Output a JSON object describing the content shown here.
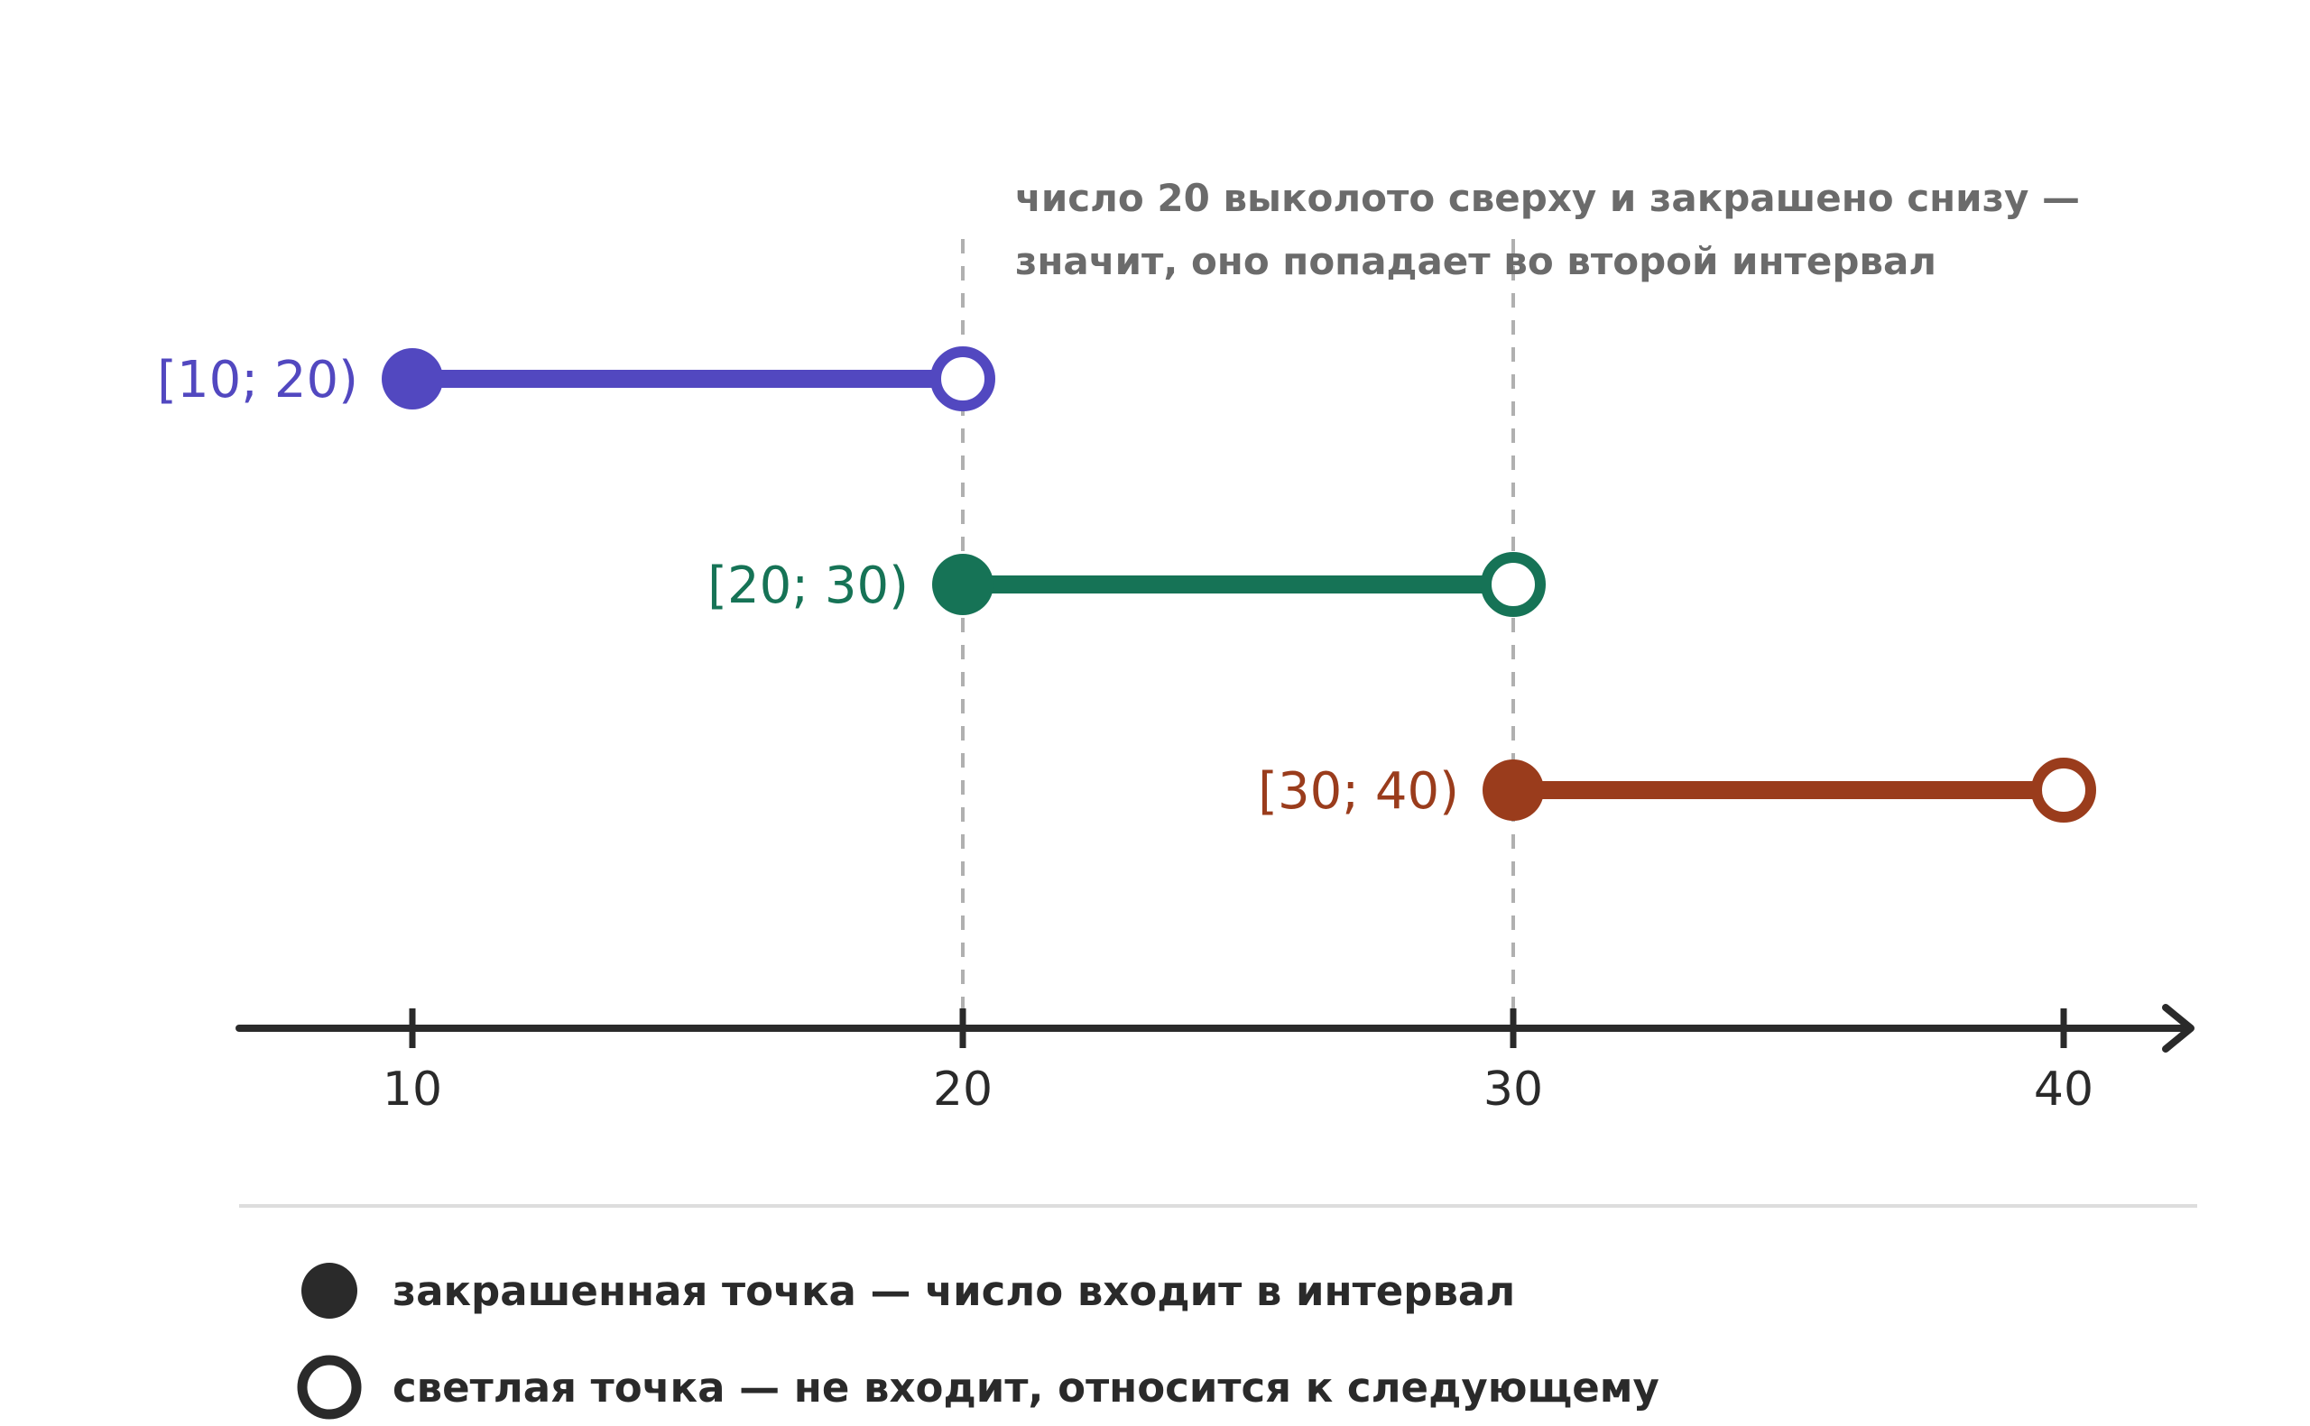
{
  "annotation": {
    "line1": "число 20 выколото сверху и закрашено снизу —",
    "line2": "значит, оно попадает во второй интервал"
  },
  "axis": {
    "ticks": [
      10,
      20,
      30,
      40
    ],
    "tick_labels": [
      "10",
      "20",
      "30",
      "40"
    ],
    "range": [
      7,
      43
    ]
  },
  "intervals": [
    {
      "label": "[10; 20)",
      "start": 10,
      "end": 20,
      "color": "#5248c0",
      "start_closed": true,
      "end_closed": false
    },
    {
      "label": "[20; 30)",
      "start": 20,
      "end": 30,
      "color": "#167356",
      "start_closed": true,
      "end_closed": false
    },
    {
      "label": "[30; 40)",
      "start": 30,
      "end": 40,
      "color": "#9a3c1c",
      "start_closed": true,
      "end_closed": false
    }
  ],
  "guides": [
    20,
    30
  ],
  "legend": {
    "filled_text": "закрашенная точка — число входит в интервал",
    "open_text": "светлая точка — не входит, относится к следующему"
  },
  "colors": {
    "axis": "#2a2a2a",
    "guide": "#b0b0b0",
    "separator": "#dddddd",
    "legend_marker": "#2a2a2a"
  }
}
